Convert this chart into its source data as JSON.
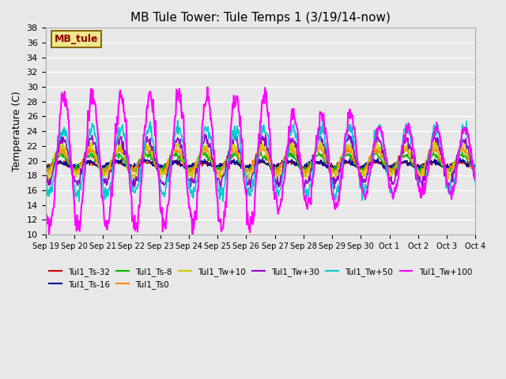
{
  "title": "MB Tule Tower: Tule Temps 1 (3/19/14-now)",
  "ylabel": "Temperature (C)",
  "ylim": [
    10,
    38
  ],
  "yticks": [
    10,
    12,
    14,
    16,
    18,
    20,
    22,
    24,
    26,
    28,
    30,
    32,
    34,
    36,
    38
  ],
  "bg_color": "#e8e8e8",
  "plot_bg_color": "#e8e8e8",
  "grid_color": "white",
  "legend_box_color": "#f0e68c",
  "legend_box_text": "MB_tule",
  "legend_box_border": "#8b6914",
  "series": [
    {
      "label": "Tul1_Ts-32",
      "color": "#cc0000",
      "lw": 1.2
    },
    {
      "label": "Tul1_Ts-16",
      "color": "#000099",
      "lw": 1.2
    },
    {
      "label": "Tul1_Ts-8",
      "color": "#00bb00",
      "lw": 1.2
    },
    {
      "label": "Tul1_Ts0",
      "color": "#ff8800",
      "lw": 1.2
    },
    {
      "label": "Tul1_Tw+10",
      "color": "#cccc00",
      "lw": 1.2
    },
    {
      "label": "Tul1_Tw+30",
      "color": "#9900cc",
      "lw": 1.2
    },
    {
      "label": "Tul1_Tw+50",
      "color": "#00cccc",
      "lw": 1.2
    },
    {
      "label": "Tul1_Tw+100",
      "color": "#ff00ff",
      "lw": 1.5
    }
  ],
  "xtick_labels": [
    "Sep 19",
    "Sep 20",
    "Sep 21",
    "Sep 22",
    "Sep 23",
    "Sep 24",
    "Sep 25",
    "Sep 26",
    "Sep 27",
    "Sep 28",
    "Sep 29",
    "Sep 30",
    "Oct 1",
    "Oct 2",
    "Oct 3",
    "Oct 4"
  ],
  "n_days": 15,
  "pts_per_day": 48
}
